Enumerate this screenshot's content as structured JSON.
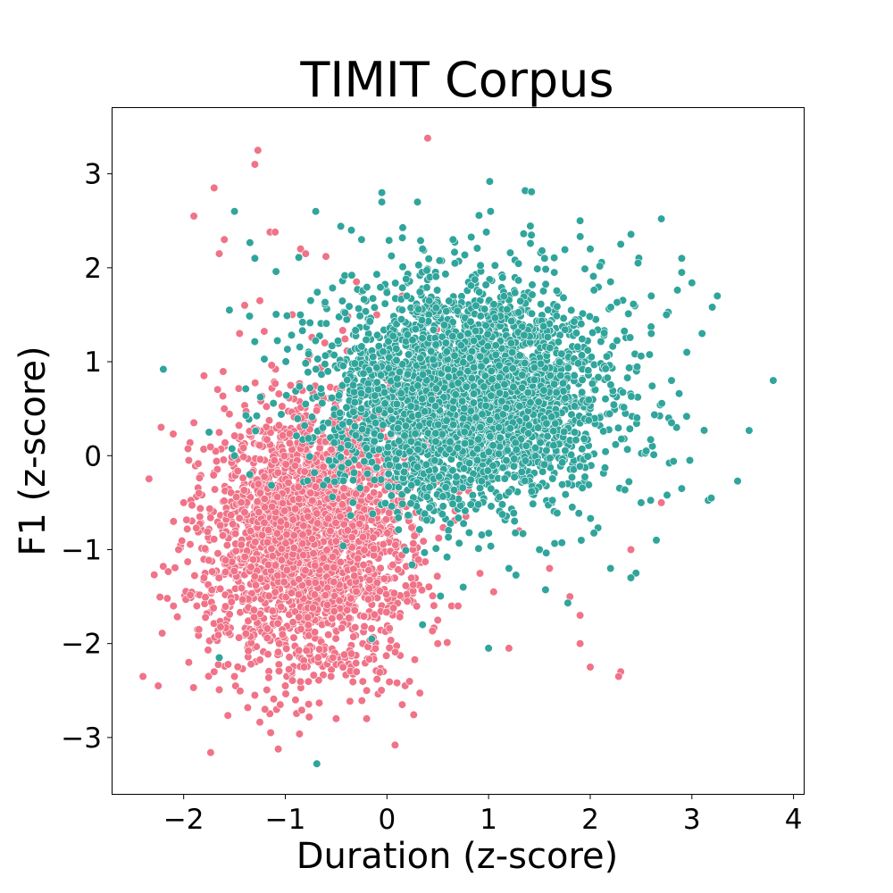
{
  "chart_data": {
    "type": "scatter",
    "title": "TIMIT Corpus",
    "xlabel": "Duration (z-score)",
    "ylabel": "F1 (z-score)",
    "xlim": [
      -2.7,
      4.1
    ],
    "ylim": [
      -3.6,
      3.7
    ],
    "xticks": [
      -2,
      -1,
      0,
      1,
      2,
      3,
      4
    ],
    "yticks": [
      -3,
      -2,
      -1,
      0,
      1,
      2,
      3
    ],
    "xtick_labels": [
      "−2",
      "−1",
      "0",
      "1",
      "2",
      "3",
      "4"
    ],
    "ytick_labels": [
      "−3",
      "−2",
      "−1",
      "0",
      "1",
      "2",
      "3"
    ],
    "grid": false,
    "legend": "none",
    "series": [
      {
        "color": "#f07388",
        "cloud": {
          "mean": [
            -0.75,
            -0.85
          ],
          "std": [
            0.5,
            0.72
          ],
          "count": 2600
        },
        "points": [
          [
            -2.4,
            -2.35
          ],
          [
            -2.25,
            -2.45
          ],
          [
            -2.1,
            -1.6
          ],
          [
            -2.05,
            -1.0
          ],
          [
            -2.0,
            -0.5
          ],
          [
            -1.95,
            -0.05
          ],
          [
            -1.9,
            0.35
          ],
          [
            -1.85,
            -1.85
          ],
          [
            -1.9,
            2.55
          ],
          [
            -1.7,
            2.85
          ],
          [
            -1.6,
            2.3
          ],
          [
            -1.3,
            3.1
          ],
          [
            -1.27,
            3.25
          ],
          [
            -1.15,
            2.38
          ],
          [
            -1.1,
            2.38
          ],
          [
            -1.65,
            2.15
          ],
          [
            0.4,
            3.38
          ],
          [
            -0.85,
            2.2
          ],
          [
            -0.8,
            2.15
          ],
          [
            -0.6,
            2.12
          ],
          [
            -0.5,
            -2.8
          ],
          [
            -0.2,
            -2.8
          ],
          [
            0.08,
            -3.08
          ],
          [
            -0.2,
            -2.5
          ],
          [
            0.15,
            -2.65
          ],
          [
            0.5,
            -2.0
          ],
          [
            1.0,
            -2.05
          ],
          [
            1.2,
            -2.05
          ],
          [
            1.9,
            -2.0
          ],
          [
            2.0,
            -2.25
          ],
          [
            2.3,
            -2.3
          ],
          [
            2.28,
            -2.35
          ],
          [
            2.4,
            -1.0
          ],
          [
            2.7,
            -0.5
          ],
          [
            1.8,
            -1.5
          ],
          [
            1.9,
            -1.7
          ],
          [
            1.6,
            -1.2
          ],
          [
            1.3,
            -0.8
          ],
          [
            -1.25,
            1.65
          ],
          [
            -1.4,
            1.6
          ],
          [
            -1.45,
            1.3
          ],
          [
            -1.8,
            0.85
          ],
          [
            -1.6,
            0.5
          ],
          [
            -1.2,
            -2.7
          ],
          [
            -1.05,
            -2.65
          ],
          [
            -0.9,
            -2.6
          ],
          [
            -1.0,
            -2.45
          ],
          [
            -1.3,
            -2.55
          ],
          [
            -1.85,
            -0.4
          ],
          [
            -2.1,
            -0.7
          ],
          [
            1.5,
            -1.0
          ],
          [
            1.05,
            -1.45
          ],
          [
            0.5,
            -1.75
          ],
          [
            0.7,
            -1.6
          ],
          [
            0.2,
            -1.55
          ],
          [
            -0.3,
            -2.3
          ],
          [
            -0.55,
            -2.35
          ],
          [
            -1.5,
            -2.35
          ],
          [
            -1.7,
            -2.3
          ],
          [
            -0.1,
            1.5
          ],
          [
            -0.3,
            1.85
          ],
          [
            0.15,
            1.7
          ],
          [
            -1.95,
            -2.2
          ],
          [
            -1.8,
            -1.3
          ]
        ]
      },
      {
        "color": "#30a59c",
        "cloud": {
          "mean": [
            0.8,
            0.65
          ],
          "std": [
            0.7,
            0.6
          ],
          "count": 3100
        },
        "points": [
          [
            -2.2,
            0.92
          ],
          [
            -1.5,
            2.6
          ],
          [
            -1.3,
            2.1
          ],
          [
            -1.55,
            1.55
          ],
          [
            -1.75,
            0.25
          ],
          [
            -0.7,
            2.6
          ],
          [
            -0.35,
            2.4
          ],
          [
            -0.05,
            2.7
          ],
          [
            -0.05,
            2.8
          ],
          [
            0.3,
            2.7
          ],
          [
            0.35,
            2.2
          ],
          [
            1.02,
            2.6
          ],
          [
            1.9,
            2.5
          ],
          [
            2.7,
            2.52
          ],
          [
            3.8,
            0.8
          ],
          [
            3.45,
            -0.27
          ],
          [
            2.9,
            1.95
          ],
          [
            2.9,
            2.1
          ],
          [
            3.0,
            1.84
          ],
          [
            3.25,
            1.7
          ],
          [
            3.2,
            1.58
          ],
          [
            3.1,
            1.3
          ],
          [
            3.12,
            0.27
          ],
          [
            2.98,
            -0.05
          ],
          [
            2.9,
            -0.35
          ],
          [
            2.85,
            0.3
          ],
          [
            2.8,
            0.8
          ],
          [
            2.95,
            1.1
          ],
          [
            2.65,
            -0.9
          ],
          [
            2.5,
            -0.5
          ],
          [
            2.45,
            -1.25
          ],
          [
            2.4,
            -1.3
          ],
          [
            2.2,
            -1.2
          ],
          [
            1.0,
            -2.05
          ],
          [
            0.35,
            -1.8
          ],
          [
            -0.15,
            -1.95
          ],
          [
            -0.69,
            -3.28
          ],
          [
            -1.65,
            -2.15
          ],
          [
            -1.5,
            0.0
          ],
          [
            -1.35,
            -0.2
          ],
          [
            2.3,
            2.25
          ],
          [
            2.0,
            2.2
          ],
          [
            2.47,
            2.05
          ],
          [
            2.2,
            1.85
          ],
          [
            2.6,
            1.7
          ],
          [
            2.75,
            1.5
          ],
          [
            2.8,
            0.35
          ],
          [
            1.5,
            -1.0
          ],
          [
            1.2,
            -1.2
          ],
          [
            0.75,
            -1.4
          ],
          [
            2.6,
            1.3
          ],
          [
            2.55,
            0.05
          ],
          [
            1.55,
            2.1
          ],
          [
            0.65,
            2.3
          ],
          [
            -0.25,
            2.3
          ]
        ]
      }
    ]
  }
}
